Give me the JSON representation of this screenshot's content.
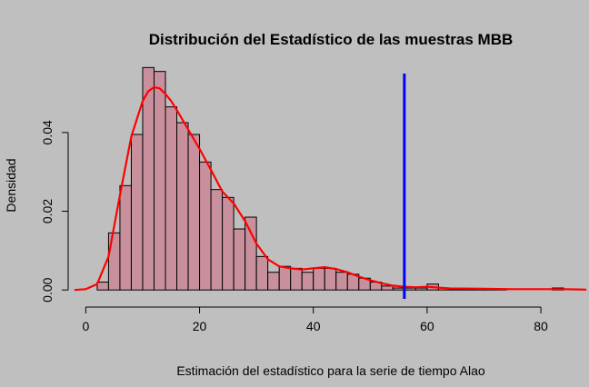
{
  "chart_data": {
    "type": "histogram",
    "title": "Distribución del Estadístico de las muestras MBB",
    "xlabel": "Estimación del estadístico para la serie de tiempo Alao",
    "ylabel": "Densidad",
    "xlim": [
      -1.5,
      87.5
    ],
    "ylim": [
      -0.0018,
      0.0575
    ],
    "x_ticks": [
      0,
      20,
      40,
      60,
      80
    ],
    "y_ticks": [
      0.0,
      0.02,
      0.04
    ],
    "y_tick_labels": [
      "0.00",
      "0.02",
      "0.04"
    ],
    "bin_width": 2,
    "bins": [
      {
        "x0": 2,
        "x1": 4,
        "value": 0.002
      },
      {
        "x0": 4,
        "x1": 6,
        "value": 0.0145
      },
      {
        "x0": 6,
        "x1": 8,
        "value": 0.0265
      },
      {
        "x0": 8,
        "x1": 10,
        "value": 0.0395
      },
      {
        "x0": 10,
        "x1": 12,
        "value": 0.0565
      },
      {
        "x0": 12,
        "x1": 14,
        "value": 0.0555
      },
      {
        "x0": 14,
        "x1": 16,
        "value": 0.0465
      },
      {
        "x0": 16,
        "x1": 18,
        "value": 0.0425
      },
      {
        "x0": 18,
        "x1": 20,
        "value": 0.0395
      },
      {
        "x0": 20,
        "x1": 22,
        "value": 0.0325
      },
      {
        "x0": 22,
        "x1": 24,
        "value": 0.0255
      },
      {
        "x0": 24,
        "x1": 26,
        "value": 0.0235
      },
      {
        "x0": 26,
        "x1": 28,
        "value": 0.0155
      },
      {
        "x0": 28,
        "x1": 30,
        "value": 0.0185
      },
      {
        "x0": 30,
        "x1": 32,
        "value": 0.0085
      },
      {
        "x0": 32,
        "x1": 34,
        "value": 0.0045
      },
      {
        "x0": 34,
        "x1": 36,
        "value": 0.006
      },
      {
        "x0": 36,
        "x1": 38,
        "value": 0.0055
      },
      {
        "x0": 38,
        "x1": 40,
        "value": 0.0045
      },
      {
        "x0": 40,
        "x1": 42,
        "value": 0.0055
      },
      {
        "x0": 42,
        "x1": 44,
        "value": 0.0055
      },
      {
        "x0": 44,
        "x1": 46,
        "value": 0.0045
      },
      {
        "x0": 46,
        "x1": 48,
        "value": 0.004
      },
      {
        "x0": 48,
        "x1": 50,
        "value": 0.003
      },
      {
        "x0": 50,
        "x1": 52,
        "value": 0.002
      },
      {
        "x0": 52,
        "x1": 54,
        "value": 0.001
      },
      {
        "x0": 54,
        "x1": 56,
        "value": 0.0005
      },
      {
        "x0": 56,
        "x1": 58,
        "value": 0.0005
      },
      {
        "x0": 58,
        "x1": 60,
        "value": 0.0005
      },
      {
        "x0": 60,
        "x1": 62,
        "value": 0.0015
      },
      {
        "x0": 62,
        "x1": 64,
        "value": 0.0005
      },
      {
        "x0": 64,
        "x1": 66,
        "value": 0.0002
      },
      {
        "x0": 66,
        "x1": 68,
        "value": 0.0002
      },
      {
        "x0": 68,
        "x1": 70,
        "value": 0.0002
      },
      {
        "x0": 70,
        "x1": 72,
        "value": 0.0002
      },
      {
        "x0": 72,
        "x1": 74,
        "value": 0.0002
      },
      {
        "x0": 82,
        "x1": 84,
        "value": 0.0005
      }
    ],
    "density_curve": {
      "color": "#ff0000",
      "points": [
        [
          -2,
          0.0
        ],
        [
          0,
          0.0002
        ],
        [
          2,
          0.0015
        ],
        [
          4,
          0.0085
        ],
        [
          6,
          0.024
        ],
        [
          8,
          0.039
        ],
        [
          10,
          0.048
        ],
        [
          11,
          0.0505
        ],
        [
          12,
          0.0515
        ],
        [
          13,
          0.0512
        ],
        [
          14,
          0.0498
        ],
        [
          15,
          0.048
        ],
        [
          16,
          0.0457
        ],
        [
          18,
          0.0408
        ],
        [
          20,
          0.0358
        ],
        [
          22,
          0.0305
        ],
        [
          24,
          0.025
        ],
        [
          26,
          0.022
        ],
        [
          28,
          0.0175
        ],
        [
          30,
          0.0118
        ],
        [
          32,
          0.0078
        ],
        [
          34,
          0.006
        ],
        [
          36,
          0.0055
        ],
        [
          38,
          0.0052
        ],
        [
          40,
          0.0055
        ],
        [
          42,
          0.0058
        ],
        [
          44,
          0.0053
        ],
        [
          46,
          0.0045
        ],
        [
          48,
          0.0034
        ],
        [
          50,
          0.0025
        ],
        [
          52,
          0.0017
        ],
        [
          54,
          0.0011
        ],
        [
          56,
          0.0008
        ],
        [
          58,
          0.0007
        ],
        [
          60,
          0.0008
        ],
        [
          62,
          0.0006
        ],
        [
          64,
          0.0004
        ],
        [
          70,
          0.0003
        ],
        [
          75,
          0.0002
        ],
        [
          80,
          0.0002
        ],
        [
          84,
          0.0002
        ],
        [
          88,
          0.0001
        ]
      ]
    },
    "reference_line": {
      "x": 56,
      "color": "#0000ff"
    },
    "colors": {
      "background": "#bfbfbf",
      "bars": "#c8909c",
      "curve": "#ff0000",
      "vline": "#0000ff"
    }
  }
}
